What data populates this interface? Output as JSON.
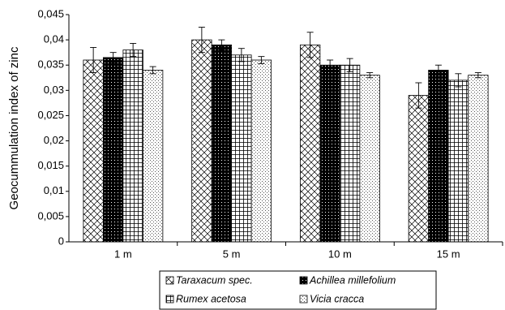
{
  "chart_data": {
    "type": "bar",
    "y_label": "Geocummulation index of zinc",
    "categories": [
      "1 m",
      "5 m",
      "10 m",
      "15 m"
    ],
    "series": [
      {
        "name": "Taraxacum spec.",
        "pattern": "crosshatch",
        "values": [
          0.036,
          0.04,
          0.039,
          0.029
        ],
        "errors": [
          0.0025,
          0.0025,
          0.0025,
          0.0025
        ]
      },
      {
        "name": "Achillea millefolium",
        "pattern": "dark",
        "values": [
          0.0365,
          0.039,
          0.035,
          0.034
        ],
        "errors": [
          0.001,
          0.001,
          0.001,
          0.001
        ]
      },
      {
        "name": "Rumex acetosa",
        "pattern": "grid",
        "values": [
          0.038,
          0.037,
          0.035,
          0.032
        ],
        "errors": [
          0.0013,
          0.0013,
          0.0013,
          0.0013
        ]
      },
      {
        "name": "Vicia cracca",
        "pattern": "dots",
        "values": [
          0.034,
          0.036,
          0.033,
          0.033
        ],
        "errors": [
          0.0007,
          0.0007,
          0.0005,
          0.0005
        ]
      }
    ],
    "ylim": [
      0,
      0.045
    ],
    "yticks": [
      0,
      {
        "value": 0.005,
        "label": "0,005"
      },
      {
        "value": 0.01,
        "label": "0,01"
      },
      {
        "value": 0.015,
        "label": "0,015"
      },
      {
        "value": 0.02,
        "label": "0,02"
      },
      {
        "value": 0.025,
        "label": "0,025"
      },
      {
        "value": 0.03,
        "label": "0,03"
      },
      {
        "value": 0.035,
        "label": "0,035"
      },
      {
        "value": 0.04,
        "label": "0,04"
      },
      {
        "value": 0.045,
        "label": "0,045"
      }
    ],
    "grid": false,
    "legend": "bottom"
  }
}
